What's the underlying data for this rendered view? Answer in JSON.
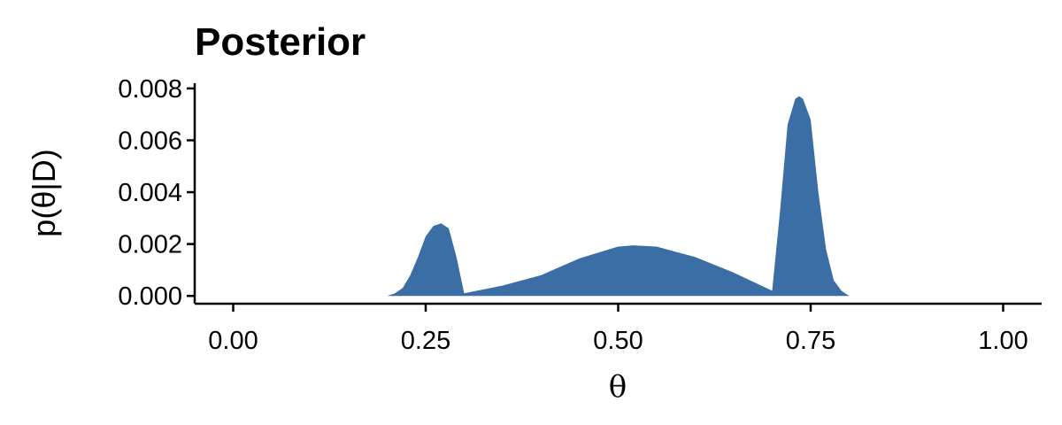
{
  "chart_data": {
    "type": "area",
    "title": "Posterior",
    "xlabel": "θ",
    "ylabel": "p(θ|D)",
    "xlim": [
      -0.05,
      1.05
    ],
    "ylim": [
      -0.0003,
      0.0082
    ],
    "x_ticks": [
      0.0,
      0.25,
      0.5,
      0.75,
      1.0
    ],
    "x_tick_labels": [
      "0.00",
      "0.25",
      "0.50",
      "0.75",
      "1.00"
    ],
    "y_ticks": [
      0.0,
      0.002,
      0.004,
      0.006,
      0.008
    ],
    "y_tick_labels": [
      "0.000",
      "0.002",
      "0.004",
      "0.006",
      "0.008"
    ],
    "grid": false,
    "legend": "none",
    "fill_color": "#3A6EA5",
    "series": [
      {
        "x": [
          0.2,
          0.21,
          0.22,
          0.23,
          0.24,
          0.25,
          0.26,
          0.27,
          0.28,
          0.29,
          0.3,
          0.35,
          0.4,
          0.45,
          0.5,
          0.52,
          0.55,
          0.6,
          0.65,
          0.7,
          0.7,
          0.71,
          0.72,
          0.73,
          0.735,
          0.74,
          0.75,
          0.76,
          0.77,
          0.78,
          0.79,
          0.8,
          0.82,
          0.84
        ],
        "y": [
          0.0,
          0.0001,
          0.0003,
          0.0008,
          0.0015,
          0.0023,
          0.0027,
          0.0028,
          0.0026,
          0.0015,
          0.0001,
          0.0004,
          0.0008,
          0.00145,
          0.0019,
          0.00195,
          0.0019,
          0.0015,
          0.0009,
          0.0002,
          0.0002,
          0.0032,
          0.0066,
          0.0076,
          0.0077,
          0.0076,
          0.0068,
          0.004,
          0.0018,
          0.0006,
          0.0002,
          0.0,
          0.0,
          0.0
        ]
      }
    ]
  }
}
